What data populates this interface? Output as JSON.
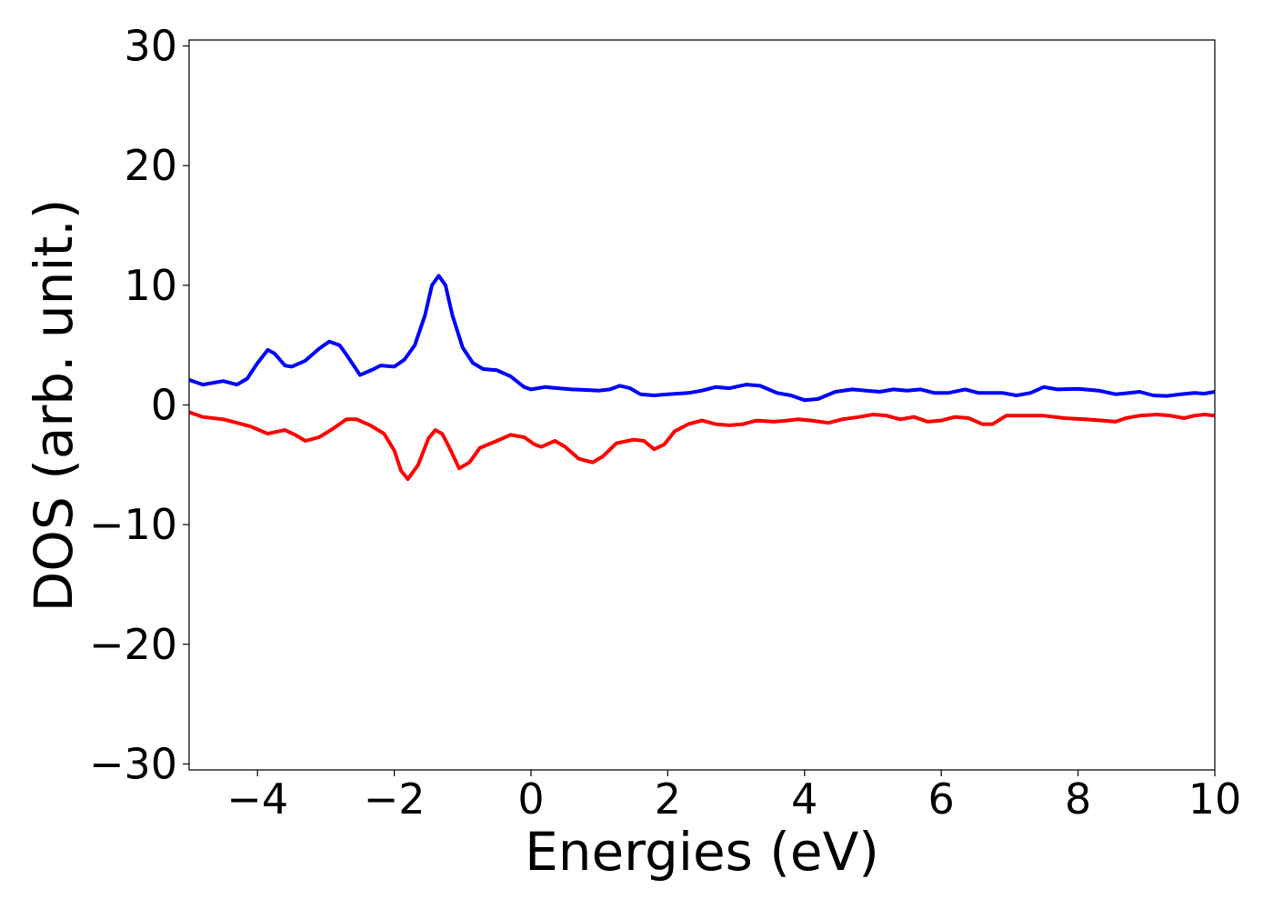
{
  "chart_data": {
    "type": "line",
    "title": "",
    "xlabel": "Energies (eV)",
    "ylabel": "DOS (arb. unit.)",
    "xlim": [
      -5,
      10
    ],
    "ylim": [
      -30.5,
      30.5
    ],
    "xticks": [
      -4,
      -2,
      0,
      2,
      4,
      6,
      8,
      10
    ],
    "yticks": [
      30,
      20,
      10,
      0,
      -10,
      -20,
      -30
    ],
    "xtick_labels": [
      "−4",
      "−2",
      "0",
      "2",
      "4",
      "6",
      "8",
      "10"
    ],
    "ytick_labels": [
      "30",
      "20",
      "10",
      "0",
      "−10",
      "−20",
      "−30"
    ],
    "grid": false,
    "legend": "none",
    "series": [
      {
        "color": "#0000ff",
        "points": [
          [
            -5.0,
            2.1
          ],
          [
            -4.8,
            1.7
          ],
          [
            -4.5,
            2.0
          ],
          [
            -4.3,
            1.7
          ],
          [
            -4.15,
            2.2
          ],
          [
            -4.0,
            3.5
          ],
          [
            -3.85,
            4.6
          ],
          [
            -3.75,
            4.3
          ],
          [
            -3.6,
            3.3
          ],
          [
            -3.5,
            3.2
          ],
          [
            -3.3,
            3.7
          ],
          [
            -3.1,
            4.7
          ],
          [
            -2.95,
            5.3
          ],
          [
            -2.8,
            5.0
          ],
          [
            -2.7,
            4.2
          ],
          [
            -2.5,
            2.5
          ],
          [
            -2.3,
            3.0
          ],
          [
            -2.2,
            3.3
          ],
          [
            -2.0,
            3.2
          ],
          [
            -1.85,
            3.8
          ],
          [
            -1.7,
            5.0
          ],
          [
            -1.55,
            7.5
          ],
          [
            -1.45,
            10.0
          ],
          [
            -1.35,
            10.8
          ],
          [
            -1.25,
            10.0
          ],
          [
            -1.15,
            7.5
          ],
          [
            -1.0,
            4.8
          ],
          [
            -0.85,
            3.5
          ],
          [
            -0.7,
            3.0
          ],
          [
            -0.5,
            2.9
          ],
          [
            -0.3,
            2.4
          ],
          [
            -0.1,
            1.5
          ],
          [
            0.0,
            1.3
          ],
          [
            0.2,
            1.5
          ],
          [
            0.4,
            1.4
          ],
          [
            0.6,
            1.3
          ],
          [
            0.8,
            1.25
          ],
          [
            1.0,
            1.2
          ],
          [
            1.15,
            1.3
          ],
          [
            1.3,
            1.6
          ],
          [
            1.45,
            1.4
          ],
          [
            1.6,
            0.9
          ],
          [
            1.8,
            0.8
          ],
          [
            2.0,
            0.9
          ],
          [
            2.3,
            1.0
          ],
          [
            2.5,
            1.2
          ],
          [
            2.7,
            1.5
          ],
          [
            2.9,
            1.4
          ],
          [
            3.15,
            1.7
          ],
          [
            3.35,
            1.6
          ],
          [
            3.6,
            1.0
          ],
          [
            3.8,
            0.8
          ],
          [
            4.0,
            0.4
          ],
          [
            4.2,
            0.5
          ],
          [
            4.45,
            1.1
          ],
          [
            4.7,
            1.3
          ],
          [
            4.9,
            1.2
          ],
          [
            5.1,
            1.1
          ],
          [
            5.3,
            1.3
          ],
          [
            5.5,
            1.2
          ],
          [
            5.7,
            1.3
          ],
          [
            5.9,
            1.0
          ],
          [
            6.1,
            1.0
          ],
          [
            6.35,
            1.3
          ],
          [
            6.55,
            1.0
          ],
          [
            6.75,
            1.0
          ],
          [
            6.9,
            1.0
          ],
          [
            7.1,
            0.8
          ],
          [
            7.3,
            1.0
          ],
          [
            7.5,
            1.5
          ],
          [
            7.7,
            1.3
          ],
          [
            8.0,
            1.35
          ],
          [
            8.3,
            1.2
          ],
          [
            8.55,
            0.9
          ],
          [
            8.75,
            1.0
          ],
          [
            8.9,
            1.1
          ],
          [
            9.1,
            0.8
          ],
          [
            9.3,
            0.75
          ],
          [
            9.5,
            0.9
          ],
          [
            9.7,
            1.0
          ],
          [
            9.85,
            0.95
          ],
          [
            10.0,
            1.1
          ]
        ]
      },
      {
        "color": "#ff0000",
        "points": [
          [
            -5.0,
            -0.6
          ],
          [
            -4.8,
            -1.0
          ],
          [
            -4.5,
            -1.2
          ],
          [
            -4.3,
            -1.5
          ],
          [
            -4.1,
            -1.8
          ],
          [
            -3.85,
            -2.4
          ],
          [
            -3.6,
            -2.1
          ],
          [
            -3.45,
            -2.5
          ],
          [
            -3.3,
            -3.0
          ],
          [
            -3.1,
            -2.7
          ],
          [
            -2.9,
            -2.0
          ],
          [
            -2.7,
            -1.2
          ],
          [
            -2.55,
            -1.2
          ],
          [
            -2.35,
            -1.7
          ],
          [
            -2.15,
            -2.4
          ],
          [
            -2.0,
            -3.8
          ],
          [
            -1.9,
            -5.5
          ],
          [
            -1.8,
            -6.2
          ],
          [
            -1.65,
            -5.0
          ],
          [
            -1.5,
            -2.8
          ],
          [
            -1.4,
            -2.1
          ],
          [
            -1.3,
            -2.4
          ],
          [
            -1.2,
            -3.5
          ],
          [
            -1.05,
            -5.3
          ],
          [
            -0.9,
            -4.8
          ],
          [
            -0.75,
            -3.6
          ],
          [
            -0.5,
            -3.0
          ],
          [
            -0.3,
            -2.5
          ],
          [
            -0.1,
            -2.7
          ],
          [
            0.05,
            -3.3
          ],
          [
            0.15,
            -3.5
          ],
          [
            0.35,
            -3.0
          ],
          [
            0.5,
            -3.5
          ],
          [
            0.7,
            -4.5
          ],
          [
            0.9,
            -4.8
          ],
          [
            1.05,
            -4.3
          ],
          [
            1.25,
            -3.2
          ],
          [
            1.5,
            -2.9
          ],
          [
            1.65,
            -3.0
          ],
          [
            1.8,
            -3.7
          ],
          [
            1.95,
            -3.3
          ],
          [
            2.1,
            -2.2
          ],
          [
            2.3,
            -1.6
          ],
          [
            2.5,
            -1.3
          ],
          [
            2.7,
            -1.6
          ],
          [
            2.9,
            -1.7
          ],
          [
            3.1,
            -1.6
          ],
          [
            3.3,
            -1.3
          ],
          [
            3.55,
            -1.4
          ],
          [
            3.75,
            -1.3
          ],
          [
            3.9,
            -1.2
          ],
          [
            4.1,
            -1.3
          ],
          [
            4.35,
            -1.5
          ],
          [
            4.55,
            -1.2
          ],
          [
            4.8,
            -1.0
          ],
          [
            5.0,
            -0.8
          ],
          [
            5.2,
            -0.9
          ],
          [
            5.4,
            -1.2
          ],
          [
            5.6,
            -1.0
          ],
          [
            5.8,
            -1.4
          ],
          [
            6.0,
            -1.3
          ],
          [
            6.2,
            -1.0
          ],
          [
            6.4,
            -1.1
          ],
          [
            6.6,
            -1.6
          ],
          [
            6.75,
            -1.6
          ],
          [
            6.95,
            -0.9
          ],
          [
            7.2,
            -0.9
          ],
          [
            7.5,
            -0.9
          ],
          [
            7.8,
            -1.1
          ],
          [
            8.1,
            -1.2
          ],
          [
            8.35,
            -1.3
          ],
          [
            8.55,
            -1.4
          ],
          [
            8.7,
            -1.1
          ],
          [
            8.9,
            -0.9
          ],
          [
            9.15,
            -0.8
          ],
          [
            9.35,
            -0.9
          ],
          [
            9.55,
            -1.1
          ],
          [
            9.7,
            -0.9
          ],
          [
            9.85,
            -0.8
          ],
          [
            10.0,
            -0.9
          ]
        ]
      }
    ]
  }
}
